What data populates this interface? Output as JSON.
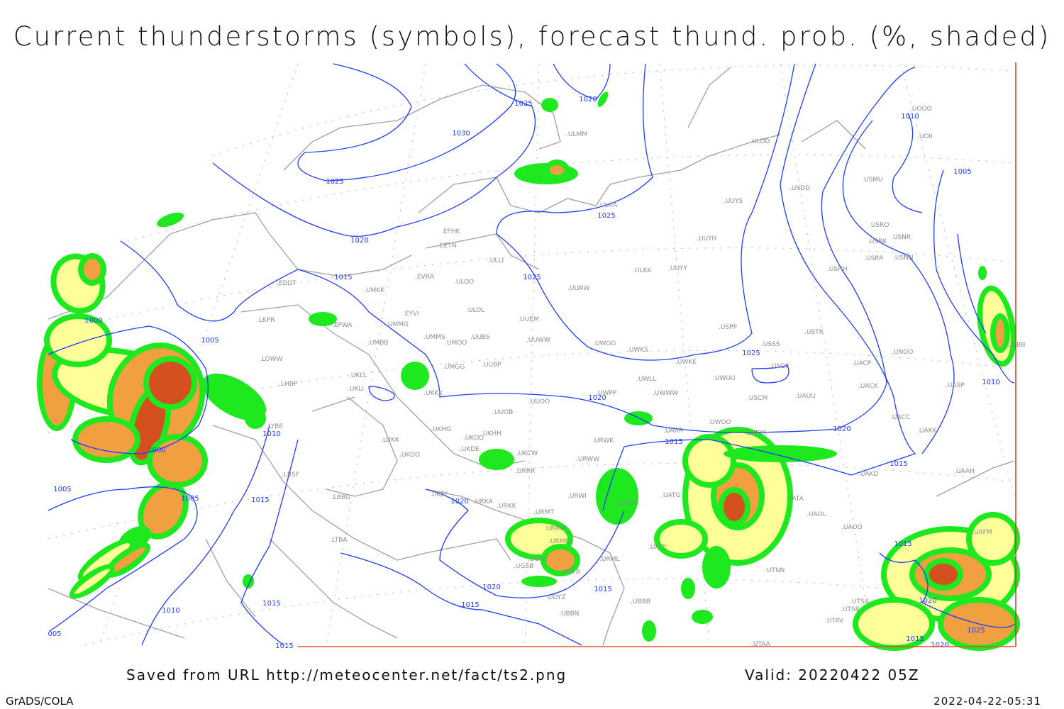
{
  "title": "Current thunderstorms (symbols), forecast thund. prob. (%, shaded)",
  "footer": {
    "saved_from": "Saved from URL http://meteocenter.net/fact/ts2.png",
    "valid": "Valid: 20220422 05Z",
    "software": "GrADS/COLA",
    "timestamp": "2022-04-22-05:31"
  },
  "colors": {
    "isobar": "#1f3cff",
    "coastline": "#a0a0a0",
    "prob_low": "#1ee81e",
    "prob_mid": "#ffff99",
    "prob_high": "#f0a040",
    "prob_max": "#d4501e",
    "frame_right": "#c04020"
  },
  "isobar_labels": [
    "1030",
    "1025",
    "1020",
    "1025",
    "1020",
    "1015",
    "1025",
    "1025",
    "1000",
    "1005",
    "1010",
    "1000",
    "1005",
    "1005",
    "1015",
    "1020",
    "1020",
    "1015",
    "1025",
    "1020",
    "1015",
    "1010",
    "1005",
    "1010",
    "1015",
    "1020",
    "1015",
    "1015",
    "1015",
    "1010",
    "005",
    "1015",
    "1020",
    "1025",
    "1015",
    "1020"
  ],
  "stations": [
    "EDDT",
    "EPWA",
    "LKPR",
    "LOWW",
    "LHBP",
    "UMKK",
    "EYVI",
    "UMMG",
    "UMBB",
    "UMMS",
    "UMOO",
    "UUBS",
    "ULOD",
    "ULOL",
    "EVRA",
    "ULLI",
    "EFHK",
    "EETN",
    "UUEM",
    "UUWW",
    "UMGG",
    "UUBP",
    "UKLL",
    "UKLI",
    "UKKK",
    "UUOO",
    "UUOB",
    "UKHG",
    "UKDD",
    "UKHH",
    "UKDE",
    "UKOO",
    "LUKK",
    "UKCW",
    "URRR",
    "LBSF",
    "LBBG",
    "UKFF",
    "URKA",
    "URKK",
    "URMT",
    "URMM",
    "URMN",
    "UGKO",
    "UGSB",
    "UDYZ",
    "UBBB",
    "UBBN",
    "UGTB",
    "URML",
    "URWA",
    "URWI",
    "URWW",
    "URWK",
    "UATG",
    "UATE",
    "UARR",
    "UWOO",
    "UWOK",
    "UWPP",
    "UWWW",
    "UWLL",
    "UWKE",
    "UWKS",
    "UWGG",
    "UWUU",
    "USCM",
    "UAUU",
    "USCC",
    "USSS",
    "USTR",
    "USPP",
    "UACP",
    "UACK",
    "UASP",
    "UNOO",
    "UACC",
    "UAKK",
    "UAKD",
    "UAAH",
    "UAFM",
    "UATA",
    "UAOL",
    "UAOO",
    "UTNN",
    "UTSA",
    "UTSB",
    "UTAV",
    "UTAA",
    "ULKK",
    "UUYY",
    "UUYH",
    "UUYS",
    "ULAA",
    "ULMM",
    "ULDD",
    "USDD",
    "USMU",
    "USRO",
    "USNR",
    "USRK",
    "USRR",
    "USNN",
    "USHH",
    "UNBB",
    "UOOO",
    "UOII",
    "LYBE",
    "LTBA",
    "ULWW"
  ]
}
